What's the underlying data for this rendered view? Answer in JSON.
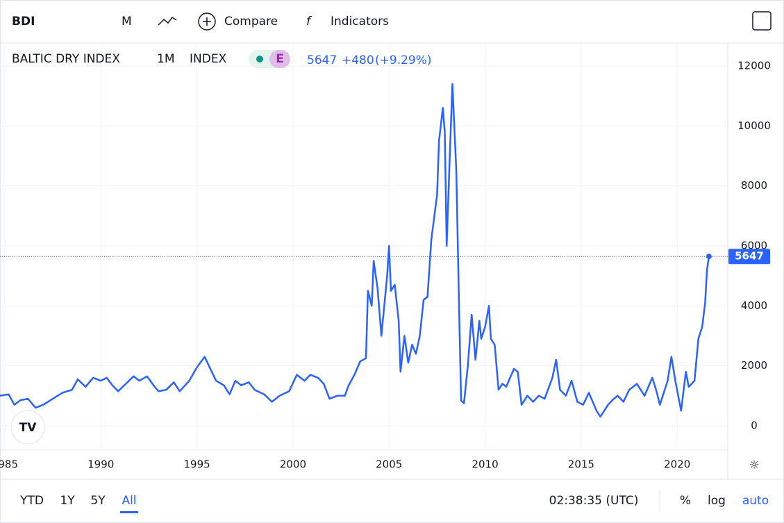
{
  "toolbar": {
    "symbol": "BDI",
    "interval": "M",
    "compare": "Compare",
    "indicators": "Indicators"
  },
  "legend": {
    "name": "BALTIC DRY INDEX",
    "interval": "1M",
    "exchange": "INDEX",
    "badge": "E",
    "last": "5647",
    "change": "+480",
    "change_pct": "(+9.29%)"
  },
  "bottom": {
    "ranges": [
      "YTD",
      "1Y",
      "5Y",
      "All"
    ],
    "time": "02:38:35 (UTC)",
    "percent": "%",
    "log": "log",
    "auto": "auto"
  },
  "chart_data": {
    "type": "line",
    "color": "#2962ff",
    "grid": true,
    "x": [
      1984.75,
      1985.2,
      1985.5,
      1985.8,
      1986.2,
      1986.6,
      1987.0,
      1987.5,
      1988.0,
      1988.5,
      1988.8,
      1989.2,
      1989.6,
      1990.0,
      1990.3,
      1990.6,
      1990.9,
      1991.3,
      1991.7,
      1992.0,
      1992.4,
      1992.8,
      1993.0,
      1993.4,
      1993.8,
      1994.1,
      1994.6,
      1995.0,
      1995.4,
      1995.7,
      1996.0,
      1996.4,
      1996.7,
      1997.0,
      1997.3,
      1997.7,
      1998.0,
      1998.5,
      1998.9,
      1999.3,
      1999.8,
      2000.2,
      2000.6,
      2000.9,
      2001.3,
      2001.6,
      2001.9,
      2002.3,
      2002.7,
      2002.9,
      2003.2,
      2003.5,
      2003.8,
      2003.9,
      2004.1,
      2004.2,
      2004.4,
      2004.6,
      2004.9,
      2005.0,
      2005.1,
      2005.3,
      2005.5,
      2005.6,
      2005.8,
      2006.0,
      2006.2,
      2006.4,
      2006.6,
      2006.8,
      2007.0,
      2007.2,
      2007.5,
      2007.6,
      2007.8,
      2007.9,
      2008.0,
      2008.15,
      2008.3,
      2008.5,
      2008.65,
      2008.75,
      2008.9,
      2009.1,
      2009.3,
      2009.5,
      2009.7,
      2009.8,
      2010.0,
      2010.2,
      2010.3,
      2010.5,
      2010.7,
      2010.9,
      2011.1,
      2011.5,
      2011.7,
      2011.9,
      2012.2,
      2012.5,
      2012.8,
      2013.1,
      2013.5,
      2013.7,
      2013.9,
      2014.2,
      2014.5,
      2014.8,
      2015.1,
      2015.4,
      2015.8,
      2016.0,
      2016.4,
      2016.7,
      2016.9,
      2017.2,
      2017.5,
      2017.9,
      2018.3,
      2018.7,
      2018.9,
      2019.1,
      2019.5,
      2019.7,
      2019.9,
      2020.2,
      2020.45,
      2020.6,
      2020.9,
      2021.1,
      2021.3,
      2021.45,
      2021.55,
      2021.65
    ],
    "values": [
      1000,
      1050,
      700,
      850,
      900,
      600,
      700,
      900,
      1100,
      1200,
      1550,
      1300,
      1600,
      1500,
      1600,
      1350,
      1150,
      1400,
      1650,
      1500,
      1650,
      1300,
      1150,
      1200,
      1450,
      1150,
      1500,
      1950,
      2300,
      1900,
      1500,
      1350,
      1050,
      1500,
      1350,
      1450,
      1200,
      1050,
      800,
      1000,
      1150,
      1700,
      1500,
      1700,
      1600,
      1400,
      900,
      1000,
      1000,
      1350,
      1700,
      2150,
      2250,
      4500,
      4000,
      5500,
      4600,
      3000,
      5000,
      6000,
      4500,
      4700,
      3500,
      1800,
      3000,
      2100,
      2700,
      2400,
      3000,
      4200,
      4300,
      6200,
      7700,
      9500,
      10600,
      9800,
      6000,
      8800,
      11400,
      8500,
      3800,
      850,
      750,
      2000,
      3700,
      2200,
      3500,
      2900,
      3300,
      4000,
      2900,
      2700,
      1200,
      1400,
      1300,
      1900,
      1800,
      700,
      1000,
      800,
      1000,
      900,
      1600,
      2200,
      1200,
      1000,
      1500,
      800,
      700,
      1100,
      500,
      300,
      700,
      900,
      1000,
      800,
      1200,
      1400,
      1000,
      1600,
      1200,
      700,
      1500,
      2300,
      1500,
      500,
      1800,
      1300,
      1500,
      2900,
      3300,
      4100,
      5200,
      5647
    ],
    "xlim": [
      1984.75,
      2022.63
    ],
    "ylim": [
      -811,
      12764
    ],
    "xticks": [
      1985,
      1990,
      1995,
      2000,
      2005,
      2010,
      2015,
      2020
    ],
    "yticks": [
      0,
      2000,
      4000,
      6000,
      8000,
      10000,
      12000
    ]
  }
}
